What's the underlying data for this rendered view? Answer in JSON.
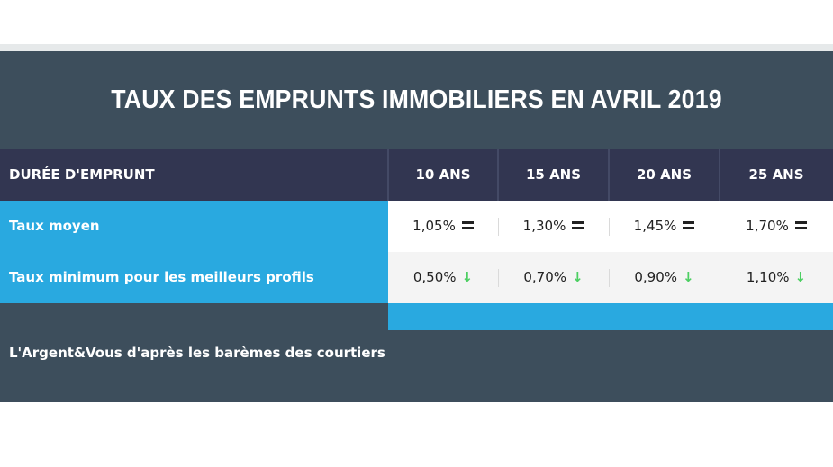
{
  "title": "TAUX DES EMPRUNTS IMMOBILIERS EN AVRIL 2019",
  "table": {
    "header_label": "DURÉE D'EMPRUNT",
    "columns": [
      "10 ANS",
      "15 ANS",
      "20 ANS",
      "25 ANS"
    ],
    "rows": [
      {
        "label": "Taux moyen",
        "values": [
          "1,05%",
          "1,30%",
          "1,45%",
          "1,70%"
        ],
        "trend_icon": "equals-icon"
      },
      {
        "label": "Taux minimum pour les meilleurs profils",
        "values": [
          "0,50%",
          "0,70%",
          "0,90%",
          "1,10%"
        ],
        "trend_icon": "arrow-down-icon"
      }
    ]
  },
  "source": "L'Argent&Vous d'après les barèmes des courtiers",
  "colors": {
    "panel": "#3d4e5c",
    "header": "#323651",
    "accent_blue": "#29a9e0",
    "trend_down": "#4ccf62"
  }
}
